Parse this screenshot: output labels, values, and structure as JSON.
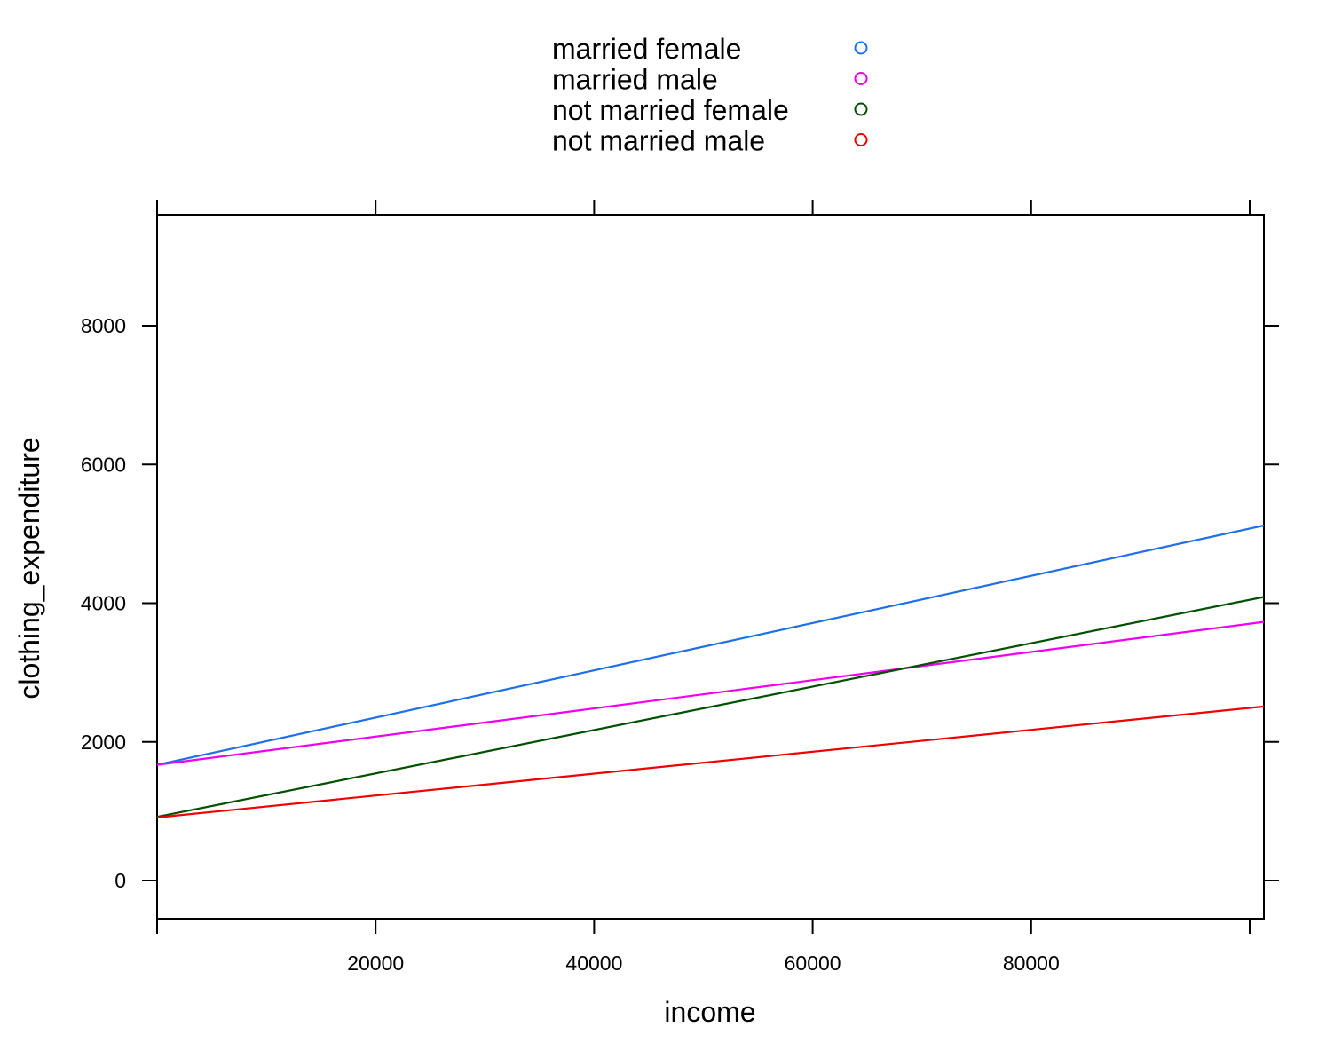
{
  "chart_data": {
    "type": "line",
    "xlabel": "income",
    "ylabel": "clothing_expenditure",
    "xlim": [
      0,
      101300
    ],
    "ylim": [
      -550,
      9600
    ],
    "x_ticks": [
      0,
      20000,
      40000,
      60000,
      80000,
      100000
    ],
    "x_tick_labels": [
      "",
      "20000",
      "40000",
      "60000",
      "80000",
      ""
    ],
    "y_ticks": [
      0,
      2000,
      4000,
      6000,
      8000
    ],
    "y_tick_labels": [
      "0",
      "2000",
      "4000",
      "6000",
      "8000"
    ],
    "grid": false,
    "legend_position": "top",
    "series": [
      {
        "name": "married female",
        "color": "#1f6fe8",
        "x": [
          0,
          101300
        ],
        "y": [
          1670,
          5120
        ]
      },
      {
        "name": "married male",
        "color": "#ee00ee",
        "x": [
          0,
          101300
        ],
        "y": [
          1670,
          3730
        ]
      },
      {
        "name": "not married female",
        "color": "#005000",
        "x": [
          0,
          101300
        ],
        "y": [
          920,
          4090
        ]
      },
      {
        "name": "not married male",
        "color": "#ee0000",
        "x": [
          0,
          101300
        ],
        "y": [
          910,
          2510
        ]
      }
    ]
  }
}
